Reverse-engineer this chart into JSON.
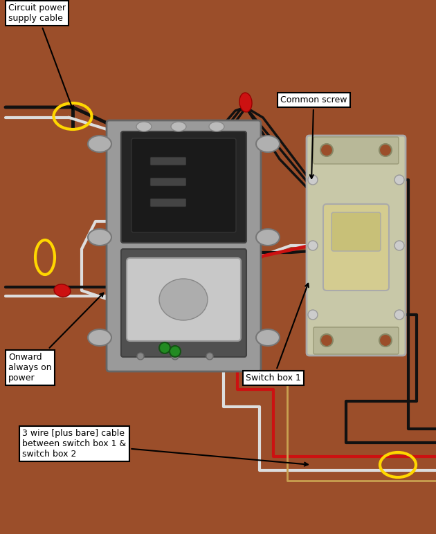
{
  "bg_color": "#9B4E2A",
  "fig_width": 6.3,
  "fig_height": 7.72,
  "dpi": 100,
  "labels": {
    "circuit_power": "Circuit power\nsupply cable",
    "common_screw": "Common screw",
    "onward_power": "Onward\nalways on\npower",
    "switch_box_1": "Switch box 1",
    "three_wire": "3 wire [plus bare] cable\nbetween switch box 1 &\nswitch box 2"
  },
  "colors": {
    "black_wire": "#111111",
    "white_wire": "#DDDDDD",
    "red_wire": "#CC1111",
    "bare_wire": "#C8A050",
    "yellow_ellipse": "#FFD700",
    "box_metal": "#9A9A9A",
    "box_dark": "#252525",
    "box_mid": "#505050",
    "switch_body": "#C8C8A8",
    "switch_dark": "#888870",
    "toggle_color": "#D4CC90",
    "red_cap": "#CC1111",
    "green_nut": "#228B22",
    "ann_bg": "#FFFFFF",
    "ann_border": "#000000"
  },
  "ann_fontsize": 9,
  "wire_lw": 3.0
}
